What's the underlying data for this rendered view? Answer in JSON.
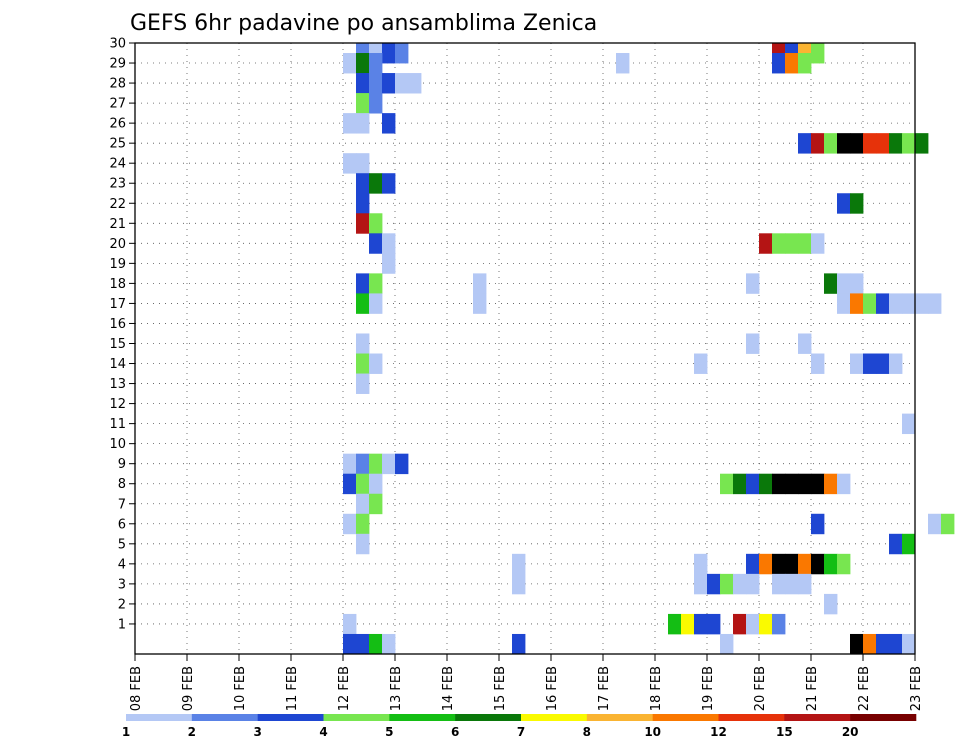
{
  "chart_data": {
    "type": "heatmap",
    "title": "GEFS 6hr padavine po ansamblima Zenica",
    "x_labels": [
      "08 FEB",
      "09 FEB",
      "10 FEB",
      "11 FEB",
      "12 FEB",
      "13 FEB",
      "14 FEB",
      "15 FEB",
      "16 FEB",
      "17 FEB",
      "18 FEB",
      "19 FEB",
      "20 FEB",
      "21 FEB",
      "22 FEB",
      "23 FEB"
    ],
    "y_labels": [
      "1",
      "2",
      "3",
      "4",
      "5",
      "6",
      "7",
      "8",
      "9",
      "10",
      "11",
      "12",
      "13",
      "14",
      "15",
      "16",
      "17",
      "18",
      "19",
      "20",
      "21",
      "22",
      "23",
      "24",
      "25",
      "26",
      "27",
      "28",
      "29",
      "30"
    ],
    "xlim": [
      0,
      15
    ],
    "ylim": [
      0,
      30
    ],
    "grid": true,
    "legend": {
      "position": "bottom",
      "labels": [
        "1",
        "2",
        "3",
        "4",
        "5",
        "6",
        "7",
        "8",
        "10",
        "12",
        "15",
        "20"
      ],
      "colors": [
        "#b4c8f5",
        "#5a82e6",
        "#1e46d2",
        "#78e650",
        "#14be14",
        "#0a780a",
        "#fafa00",
        "#fab432",
        "#fa7800",
        "#e6320a",
        "#b41414",
        "#780000"
      ]
    },
    "cells": [
      [
        4.25,
        30,
        2
      ],
      [
        4.5,
        30,
        1
      ],
      [
        4.75,
        30,
        3
      ],
      [
        5.0,
        30,
        2
      ],
      [
        12.25,
        30,
        11
      ],
      [
        12.5,
        30,
        3
      ],
      [
        12.75,
        30,
        8
      ],
      [
        13.0,
        30,
        4
      ],
      [
        4.0,
        29,
        1
      ],
      [
        4.25,
        29,
        6
      ],
      [
        4.5,
        29,
        2
      ],
      [
        9.25,
        29,
        1
      ],
      [
        12.25,
        29,
        3
      ],
      [
        12.5,
        29,
        9
      ],
      [
        12.75,
        29,
        4
      ],
      [
        4.25,
        28,
        3
      ],
      [
        4.5,
        28,
        2
      ],
      [
        4.75,
        28,
        3
      ],
      [
        5.0,
        28,
        1
      ],
      [
        5.25,
        28,
        1
      ],
      [
        4.25,
        27,
        4
      ],
      [
        4.5,
        27,
        2
      ],
      [
        4.0,
        26,
        1
      ],
      [
        4.25,
        26,
        1
      ],
      [
        4.75,
        26,
        3
      ],
      [
        12.75,
        25,
        3
      ],
      [
        13.0,
        25,
        11
      ],
      [
        13.25,
        25,
        4
      ],
      [
        13.5,
        25,
        13
      ],
      [
        13.75,
        25,
        13
      ],
      [
        14.0,
        25,
        10
      ],
      [
        14.25,
        25,
        10
      ],
      [
        14.5,
        25,
        6
      ],
      [
        14.75,
        25,
        4
      ],
      [
        15.0,
        25,
        6
      ],
      [
        4.0,
        24,
        1
      ],
      [
        4.25,
        24,
        1
      ],
      [
        4.25,
        23,
        3
      ],
      [
        4.5,
        23,
        6
      ],
      [
        4.75,
        23,
        3
      ],
      [
        4.25,
        22,
        3
      ],
      [
        13.5,
        22,
        3
      ],
      [
        13.75,
        22,
        6
      ],
      [
        4.25,
        21,
        11
      ],
      [
        4.5,
        21,
        4
      ],
      [
        4.5,
        20,
        3
      ],
      [
        4.75,
        20,
        1
      ],
      [
        12.0,
        20,
        11
      ],
      [
        12.25,
        20,
        4
      ],
      [
        12.5,
        20,
        4
      ],
      [
        12.75,
        20,
        4
      ],
      [
        13.0,
        20,
        1
      ],
      [
        4.75,
        19,
        1
      ],
      [
        4.25,
        18,
        3
      ],
      [
        4.5,
        18,
        4
      ],
      [
        6.5,
        18,
        1
      ],
      [
        11.75,
        18,
        1
      ],
      [
        13.25,
        18,
        6
      ],
      [
        13.5,
        18,
        1
      ],
      [
        13.75,
        18,
        1
      ],
      [
        4.25,
        17,
        5
      ],
      [
        4.5,
        17,
        1
      ],
      [
        6.5,
        17,
        1
      ],
      [
        13.5,
        17,
        1
      ],
      [
        13.75,
        17,
        9
      ],
      [
        14.0,
        17,
        4
      ],
      [
        14.25,
        17,
        3
      ],
      [
        14.5,
        17,
        1
      ],
      [
        14.75,
        17,
        1
      ],
      [
        15.0,
        17,
        1
      ],
      [
        15.25,
        17,
        1
      ],
      [
        4.25,
        15,
        1
      ],
      [
        11.75,
        15,
        1
      ],
      [
        12.75,
        15,
        1
      ],
      [
        4.25,
        14,
        4
      ],
      [
        4.5,
        14,
        1
      ],
      [
        10.75,
        14,
        1
      ],
      [
        13.0,
        14,
        1
      ],
      [
        13.75,
        14,
        1
      ],
      [
        14.0,
        14,
        3
      ],
      [
        14.25,
        14,
        3
      ],
      [
        14.5,
        14,
        1
      ],
      [
        4.25,
        13,
        1
      ],
      [
        14.75,
        11,
        1
      ],
      [
        4.0,
        9,
        1
      ],
      [
        4.25,
        9,
        2
      ],
      [
        4.5,
        9,
        4
      ],
      [
        4.75,
        9,
        1
      ],
      [
        5.0,
        9,
        3
      ],
      [
        4.0,
        8,
        3
      ],
      [
        4.25,
        8,
        4
      ],
      [
        4.5,
        8,
        1
      ],
      [
        11.25,
        8,
        4
      ],
      [
        11.5,
        8,
        6
      ],
      [
        11.75,
        8,
        3
      ],
      [
        12.0,
        8,
        6
      ],
      [
        12.25,
        8,
        14
      ],
      [
        12.5,
        8,
        14
      ],
      [
        12.75,
        8,
        15
      ],
      [
        13.0,
        8,
        16
      ],
      [
        13.25,
        8,
        9
      ],
      [
        13.5,
        8,
        1
      ],
      [
        4.25,
        7,
        1
      ],
      [
        4.5,
        7,
        4
      ],
      [
        4.0,
        6,
        1
      ],
      [
        4.25,
        6,
        4
      ],
      [
        13.0,
        6,
        3
      ],
      [
        15.25,
        6,
        1
      ],
      [
        15.5,
        6,
        4
      ],
      [
        4.25,
        5,
        1
      ],
      [
        14.5,
        5,
        3
      ],
      [
        14.75,
        5,
        5
      ],
      [
        7.25,
        4,
        1
      ],
      [
        10.75,
        4,
        1
      ],
      [
        11.75,
        4,
        3
      ],
      [
        12.0,
        4,
        9
      ],
      [
        12.25,
        4,
        14
      ],
      [
        12.5,
        4,
        13
      ],
      [
        12.75,
        4,
        9
      ],
      [
        13.0,
        4,
        13
      ],
      [
        13.25,
        4,
        5
      ],
      [
        13.5,
        4,
        4
      ],
      [
        7.25,
        3,
        1
      ],
      [
        10.75,
        3,
        1
      ],
      [
        11.0,
        3,
        3
      ],
      [
        11.25,
        3,
        4
      ],
      [
        11.5,
        3,
        1
      ],
      [
        11.75,
        3,
        1
      ],
      [
        12.25,
        3,
        1
      ],
      [
        12.5,
        3,
        1
      ],
      [
        12.75,
        3,
        1
      ],
      [
        13.25,
        2,
        1
      ],
      [
        4.0,
        1,
        1
      ],
      [
        10.25,
        1,
        5
      ],
      [
        10.5,
        1,
        7
      ],
      [
        10.75,
        1,
        3
      ],
      [
        11.0,
        1,
        3
      ],
      [
        11.5,
        1,
        11
      ],
      [
        11.75,
        1,
        1
      ],
      [
        12.0,
        1,
        7
      ],
      [
        12.25,
        1,
        2
      ],
      [
        4.0,
        0,
        3
      ],
      [
        4.25,
        0,
        3
      ],
      [
        4.5,
        0,
        5
      ],
      [
        4.75,
        0,
        1
      ],
      [
        7.25,
        0,
        3
      ],
      [
        11.25,
        0,
        1
      ],
      [
        13.75,
        0,
        15
      ],
      [
        14.0,
        0,
        9
      ],
      [
        14.25,
        0,
        3
      ],
      [
        14.5,
        0,
        3
      ],
      [
        14.75,
        0,
        1
      ]
    ]
  }
}
